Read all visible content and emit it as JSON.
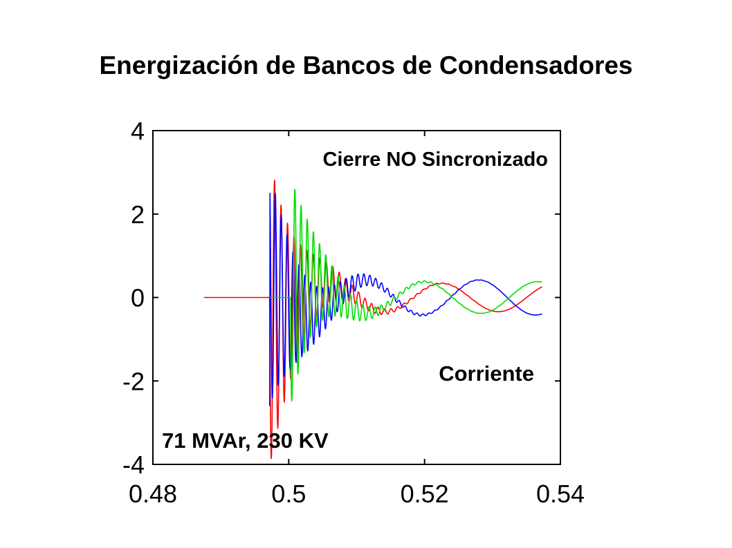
{
  "slide": {
    "title": "Energización de Bancos de Condensadores"
  },
  "chart_data": {
    "type": "line",
    "xlim": [
      0.48,
      0.54
    ],
    "ylim": [
      -4,
      4
    ],
    "x_ticks": [
      0.48,
      0.5,
      0.52,
      0.54
    ],
    "x_tick_labels": [
      "0.48",
      "0.5",
      "0.52",
      "0.54"
    ],
    "y_ticks": [
      4,
      2,
      0,
      -2,
      -4
    ],
    "y_tick_labels": [
      "4",
      "2",
      "0",
      "-2",
      "-4"
    ],
    "grid": false,
    "annotations": {
      "top_right": "Cierre NO Sincronizado",
      "bottom_right": "Corriente",
      "bottom_left": "71 MVAr, 230 KV"
    },
    "series_colors": {
      "red": "#ff0000",
      "blue": "#0000ff",
      "green": "#00dd00"
    },
    "series": [
      {
        "color": "red",
        "start_x": 0.4875,
        "switch_x": 0.4972,
        "end_x": 0.5373,
        "initial_peak": 3.4,
        "steady_amplitude": 0.34,
        "steady_phase_deg": -97,
        "ringing_freq": 1050,
        "decay_time": 0.0042,
        "ringing_phase_deg": 90
      },
      {
        "color": "blue",
        "start_x": 0.4972,
        "switch_x": 0.4972,
        "end_x": 0.5373,
        "initial_peak": -2.6,
        "steady_amplitude": 0.42,
        "steady_phase_deg": 145,
        "ringing_freq": 1150,
        "decay_time": 0.0047,
        "ringing_phase_deg": 200
      },
      {
        "color": "green",
        "start_x": 0.4972,
        "switch_x": 0.5003,
        "end_x": 0.5373,
        "initial_peak": -2.6,
        "steady_amplitude": 0.38,
        "steady_phase_deg": 25,
        "ringing_freq": 1100,
        "decay_time": 0.004,
        "ringing_phase_deg": 300
      }
    ]
  }
}
